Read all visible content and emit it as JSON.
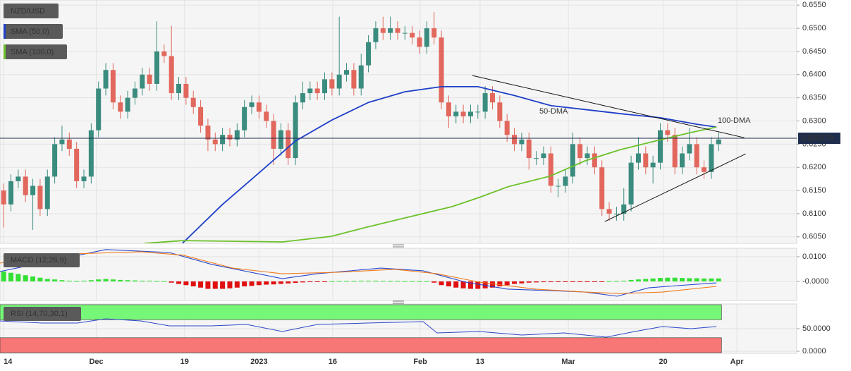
{
  "chart_data": [
    {
      "type": "candlestick",
      "title": "NZD/USD",
      "up_color": "#3a8c7e",
      "down_color": "#e2675c",
      "ylim": [
        0.6036,
        0.6561
      ],
      "yticks": [
        {
          "value": 0.655,
          "label": "0.6550"
        },
        {
          "value": 0.65,
          "label": "0.6500"
        },
        {
          "value": 0.645,
          "label": "0.6450"
        },
        {
          "value": 0.64,
          "label": "0.6400"
        },
        {
          "value": 0.635,
          "label": "0.6350"
        },
        {
          "value": 0.63,
          "label": "0.6300"
        },
        {
          "value": 0.625,
          "label": "0.6250"
        },
        {
          "value": 0.62,
          "label": "0.6200"
        },
        {
          "value": 0.615,
          "label": "0.6150"
        },
        {
          "value": 0.61,
          "label": "0.6100"
        },
        {
          "value": 0.605,
          "label": "0.6050"
        }
      ],
      "grid": true,
      "candles": [
        [
          0.615,
          0.6165,
          0.607,
          0.612
        ],
        [
          0.612,
          0.6185,
          0.6105,
          0.617
        ],
        [
          0.617,
          0.6195,
          0.6155,
          0.618
        ],
        [
          0.618,
          0.6195,
          0.6125,
          0.614
        ],
        [
          0.614,
          0.6175,
          0.6065,
          0.616
        ],
        [
          0.616,
          0.6175,
          0.6095,
          0.611
        ],
        [
          0.611,
          0.6195,
          0.6095,
          0.618
        ],
        [
          0.618,
          0.6265,
          0.6165,
          0.625
        ],
        [
          0.625,
          0.629,
          0.6235,
          0.626
        ],
        [
          0.626,
          0.6275,
          0.6225,
          0.624
        ],
        [
          0.624,
          0.6255,
          0.6155,
          0.617
        ],
        [
          0.617,
          0.6195,
          0.6155,
          0.618
        ],
        [
          0.618,
          0.6295,
          0.6165,
          0.628
        ],
        [
          0.628,
          0.6385,
          0.6265,
          0.637
        ],
        [
          0.637,
          0.6425,
          0.6355,
          0.641
        ],
        [
          0.641,
          0.6425,
          0.6325,
          0.634
        ],
        [
          0.634,
          0.6355,
          0.6305,
          0.632
        ],
        [
          0.632,
          0.6365,
          0.6305,
          0.635
        ],
        [
          0.635,
          0.6385,
          0.6335,
          0.637
        ],
        [
          0.637,
          0.6415,
          0.6355,
          0.64
        ],
        [
          0.64,
          0.6415,
          0.6365,
          0.638
        ],
        [
          0.638,
          0.6515,
          0.6365,
          0.645
        ],
        [
          0.645,
          0.6465,
          0.6425,
          0.644
        ],
        [
          0.644,
          0.6505,
          0.6345,
          0.636
        ],
        [
          0.636,
          0.6395,
          0.6345,
          0.638
        ],
        [
          0.638,
          0.6395,
          0.6335,
          0.635
        ],
        [
          0.635,
          0.6365,
          0.6315,
          0.633
        ],
        [
          0.633,
          0.6345,
          0.6275,
          0.629
        ],
        [
          0.629,
          0.6305,
          0.6235,
          0.626
        ],
        [
          0.626,
          0.6275,
          0.6235,
          0.625
        ],
        [
          0.625,
          0.6285,
          0.6235,
          0.627
        ],
        [
          0.627,
          0.6285,
          0.6245,
          0.626
        ],
        [
          0.626,
          0.6295,
          0.6245,
          0.628
        ],
        [
          0.628,
          0.6345,
          0.6265,
          0.633
        ],
        [
          0.633,
          0.6355,
          0.6315,
          0.634
        ],
        [
          0.634,
          0.6355,
          0.6305,
          0.632
        ],
        [
          0.632,
          0.6335,
          0.6285,
          0.63
        ],
        [
          0.63,
          0.6315,
          0.6205,
          0.624
        ],
        [
          0.624,
          0.6295,
          0.6225,
          0.628
        ],
        [
          0.628,
          0.6295,
          0.6205,
          0.622
        ],
        [
          0.622,
          0.6355,
          0.6205,
          0.634
        ],
        [
          0.634,
          0.6385,
          0.6325,
          0.636
        ],
        [
          0.636,
          0.6385,
          0.6345,
          0.637
        ],
        [
          0.637,
          0.6385,
          0.6345,
          0.636
        ],
        [
          0.636,
          0.6405,
          0.6345,
          0.639
        ],
        [
          0.639,
          0.6405,
          0.6355,
          0.637
        ],
        [
          0.637,
          0.6525,
          0.6355,
          0.64
        ],
        [
          0.64,
          0.6425,
          0.6385,
          0.641
        ],
        [
          0.641,
          0.6425,
          0.6355,
          0.637
        ],
        [
          0.637,
          0.6445,
          0.6355,
          0.642
        ],
        [
          0.642,
          0.6485,
          0.6405,
          0.647
        ],
        [
          0.647,
          0.6515,
          0.6455,
          0.65
        ],
        [
          0.65,
          0.6525,
          0.6475,
          0.649
        ],
        [
          0.649,
          0.6525,
          0.6475,
          0.65
        ],
        [
          0.65,
          0.6515,
          0.6475,
          0.649
        ],
        [
          0.649,
          0.6505,
          0.6475,
          0.649
        ],
        [
          0.649,
          0.6505,
          0.6465,
          0.648
        ],
        [
          0.648,
          0.6495,
          0.6445,
          0.646
        ],
        [
          0.646,
          0.6515,
          0.6445,
          0.65
        ],
        [
          0.65,
          0.6535,
          0.6465,
          0.648
        ],
        [
          0.648,
          0.6495,
          0.6325,
          0.634
        ],
        [
          0.634,
          0.6355,
          0.6285,
          0.631
        ],
        [
          0.631,
          0.6335,
          0.6295,
          0.632
        ],
        [
          0.632,
          0.6335,
          0.6295,
          0.631
        ],
        [
          0.631,
          0.6335,
          0.6295,
          0.632
        ],
        [
          0.632,
          0.6335,
          0.6305,
          0.632
        ],
        [
          0.632,
          0.6375,
          0.6305,
          0.636
        ],
        [
          0.636,
          0.6375,
          0.6325,
          0.634
        ],
        [
          0.634,
          0.6355,
          0.6285,
          0.63
        ],
        [
          0.63,
          0.6315,
          0.6255,
          0.627
        ],
        [
          0.627,
          0.6285,
          0.6235,
          0.625
        ],
        [
          0.625,
          0.6275,
          0.6235,
          0.626
        ],
        [
          0.626,
          0.6275,
          0.6195,
          0.622
        ],
        [
          0.622,
          0.6235,
          0.6205,
          0.622
        ],
        [
          0.622,
          0.6245,
          0.6205,
          0.623
        ],
        [
          0.623,
          0.6245,
          0.6145,
          0.616
        ],
        [
          0.616,
          0.6175,
          0.6135,
          0.616
        ],
        [
          0.616,
          0.6195,
          0.6145,
          0.618
        ],
        [
          0.618,
          0.6275,
          0.6165,
          0.625
        ],
        [
          0.625,
          0.6265,
          0.6205,
          0.622
        ],
        [
          0.622,
          0.6245,
          0.6205,
          0.623
        ],
        [
          0.623,
          0.6245,
          0.6185,
          0.62
        ],
        [
          0.62,
          0.6215,
          0.6095,
          0.611
        ],
        [
          0.611,
          0.6125,
          0.6085,
          0.61
        ],
        [
          0.61,
          0.6115,
          0.6085,
          0.61
        ],
        [
          0.61,
          0.6155,
          0.6085,
          0.612
        ],
        [
          0.612,
          0.6225,
          0.6105,
          0.621
        ],
        [
          0.621,
          0.6265,
          0.6195,
          0.623
        ],
        [
          0.623,
          0.6245,
          0.6185,
          0.62
        ],
        [
          0.62,
          0.6225,
          0.6165,
          0.621
        ],
        [
          0.621,
          0.6295,
          0.6195,
          0.628
        ],
        [
          0.628,
          0.6295,
          0.6255,
          0.627
        ],
        [
          0.627,
          0.6285,
          0.6185,
          0.62
        ],
        [
          0.62,
          0.6245,
          0.6185,
          0.623
        ],
        [
          0.623,
          0.6285,
          0.6215,
          0.625
        ],
        [
          0.625,
          0.6265,
          0.6185,
          0.62
        ],
        [
          0.62,
          0.6215,
          0.6175,
          0.619
        ],
        [
          0.619,
          0.6265,
          0.6175,
          0.625
        ],
        [
          0.625,
          0.6275,
          0.6235,
          0.626
        ]
      ],
      "series": [
        {
          "name": "SMA (50,0)",
          "color": "#1e3fc8",
          "x": [
            24.5,
            30,
            35,
            40,
            45,
            50,
            55,
            60,
            65,
            70,
            75,
            80,
            85,
            90,
            95,
            97.7
          ],
          "values": [
            0.6036,
            0.612,
            0.6188,
            0.6257,
            0.6302,
            0.634,
            0.6363,
            0.6374,
            0.6374,
            0.6355,
            0.6333,
            0.6324,
            0.6315,
            0.6307,
            0.6293,
            0.6287
          ]
        },
        {
          "name": "SMA (100,0)",
          "color": "#6cc12a",
          "x": [
            19.3,
            24.6,
            38.2,
            44.9,
            49.8,
            55.6,
            61.4,
            65.2,
            69.1,
            74.9,
            79.7,
            84.5,
            89.4,
            94.2,
            97.7
          ],
          "values": [
            0.6036,
            0.6042,
            0.6039,
            0.6051,
            0.6071,
            0.6093,
            0.6115,
            0.6135,
            0.6158,
            0.6181,
            0.6214,
            0.6238,
            0.6257,
            0.6275,
            0.6287
          ]
        }
      ],
      "trendlines": [
        {
          "color": "#111111",
          "x": [
            64.25,
            101.5
          ],
          "values": [
            0.6398,
            0.6264
          ]
        },
        {
          "color": "#111111",
          "x": [
            82.4,
            101.7
          ],
          "values": [
            0.6083,
            0.6229
          ]
        }
      ],
      "annotations": [
        {
          "text": "50-DMA",
          "color": "#7b5fc4"
        },
        {
          "text": "100-DMA",
          "color": "#6cc12a"
        }
      ],
      "last_price": {
        "value": 0.62627,
        "label": "0.626270"
      }
    },
    {
      "type": "macd",
      "title": "MACD (12,26,9)",
      "ylim": [
        -0.0077,
        0.0134
      ],
      "yticks": [
        {
          "value": 0.01,
          "label": "0.0100"
        },
        {
          "value": 0,
          "label": "-0.0000"
        }
      ],
      "histogram": [
        0.004,
        0.0035,
        0.003,
        0.0025,
        0.002,
        0.0015,
        0.001,
        0.0008,
        0.0005,
        0.0003,
        0.0002,
        0.0003,
        0.0005,
        0.0008,
        0.001,
        0.0008,
        0.0006,
        0.0005,
        0.0004,
        0.0003,
        0.0003,
        0.0002,
        0.0001,
        -0.0005,
        -0.001,
        -0.0015,
        -0.002,
        -0.0025,
        -0.003,
        -0.003,
        -0.003,
        -0.0028,
        -0.0025,
        -0.002,
        -0.0018,
        -0.0015,
        -0.0013,
        -0.0012,
        -0.001,
        -0.0008,
        -0.0006,
        -0.0004,
        -0.0003,
        -0.0002,
        -0.0001,
        0.0001,
        0.0002,
        0.0002,
        0.0002,
        0.0003,
        0.0003,
        0.0003,
        0.0002,
        0.0002,
        0.0002,
        0.0001,
        0.0001,
        0.0001,
        0.0001,
        -0.0005,
        -0.0015,
        -0.002,
        -0.0025,
        -0.0028,
        -0.003,
        -0.003,
        -0.0028,
        -0.0025,
        -0.002,
        -0.0015,
        -0.001,
        -0.0008,
        -0.0005,
        -0.0004,
        -0.0003,
        -0.0003,
        -0.0002,
        -0.0002,
        -0.0001,
        -0.0001,
        -0.0001,
        -0.0001,
        -0.0001,
        0.0001,
        0.0002,
        0.0003,
        0.0006,
        0.0008,
        0.001,
        0.0012,
        0.0014,
        0.0015,
        0.0015,
        0.0014,
        0.0013,
        0.0013,
        0.0012,
        0.0012,
        0.0012
      ],
      "up_color": "#33e033",
      "down_color": "#e01010",
      "series": [
        {
          "color": "#2748d0",
          "x": [
            -0.5,
            14,
            22.7,
            28.5,
            38.2,
            43,
            51.7,
            57.5,
            63.3,
            69.1,
            74.9,
            79.7,
            84.1,
            88.4,
            92.3,
            97.7
          ],
          "values": [
            0.004,
            0.0129,
            0.0117,
            0.0069,
            0.0011,
            0.0031,
            0.0054,
            0.0043,
            -0.0003,
            -0.0031,
            -0.0037,
            -0.0043,
            -0.006,
            -0.0026,
            -0.0017,
            -0.0006
          ]
        },
        {
          "color": "#f07a1a",
          "x": [
            -0.5,
            9.2,
            18.8,
            24.6,
            31.4,
            38.2,
            45.9,
            53.6,
            59.4,
            65.2,
            72.9,
            79.7,
            84.5,
            90.3,
            97.7
          ],
          "values": [
            0.0074,
            0.0111,
            0.012,
            0.0106,
            0.0054,
            0.0031,
            0.0037,
            0.0049,
            0.0031,
            -0.0003,
            -0.0031,
            -0.0043,
            -0.0049,
            -0.0043,
            -0.002
          ]
        }
      ]
    },
    {
      "type": "rsi",
      "title": "RSI (14,70,30,1)",
      "ylim": [
        -4.7,
        104.7
      ],
      "yticks": [
        {
          "value": 50,
          "label": "50.0000"
        },
        {
          "value": 0,
          "label": "0.0000"
        }
      ],
      "overbought": 70,
      "oversold": 30,
      "overbought_color": "#77f777",
      "oversold_color": "#f77777",
      "series": [
        {
          "color": "#2a47c8",
          "x": [
            -0.5,
            5.3,
            10.1,
            14,
            18.8,
            22.7,
            28.5,
            33.3,
            38.2,
            43,
            49.8,
            57.5,
            59.4,
            65.2,
            71,
            76.8,
            82.6,
            86.5,
            90.3,
            94.2,
            97.7
          ],
          "values": [
            67.2,
            62.5,
            62.5,
            71.9,
            67.2,
            56.3,
            56.3,
            59.4,
            43.8,
            59.4,
            62.5,
            65.6,
            40.6,
            43.8,
            35.9,
            40.6,
            31.3,
            43.8,
            54.7,
            50,
            54.7
          ]
        }
      ],
      "xlim": [
        -0.5,
        108.7
      ],
      "xticks": [
        {
          "value": 0,
          "label": "14"
        },
        {
          "value": 12.7,
          "label": "Dec"
        },
        {
          "value": 24.8,
          "label": "19"
        },
        {
          "value": 35,
          "label": "2023"
        },
        {
          "value": 45.1,
          "label": "16"
        },
        {
          "value": 57.1,
          "label": "Feb"
        },
        {
          "value": 65.3,
          "label": "13"
        },
        {
          "value": 77.4,
          "label": "Mar"
        },
        {
          "value": 90.4,
          "label": "20"
        },
        {
          "value": 100.5,
          "label": "Apr"
        }
      ]
    }
  ]
}
